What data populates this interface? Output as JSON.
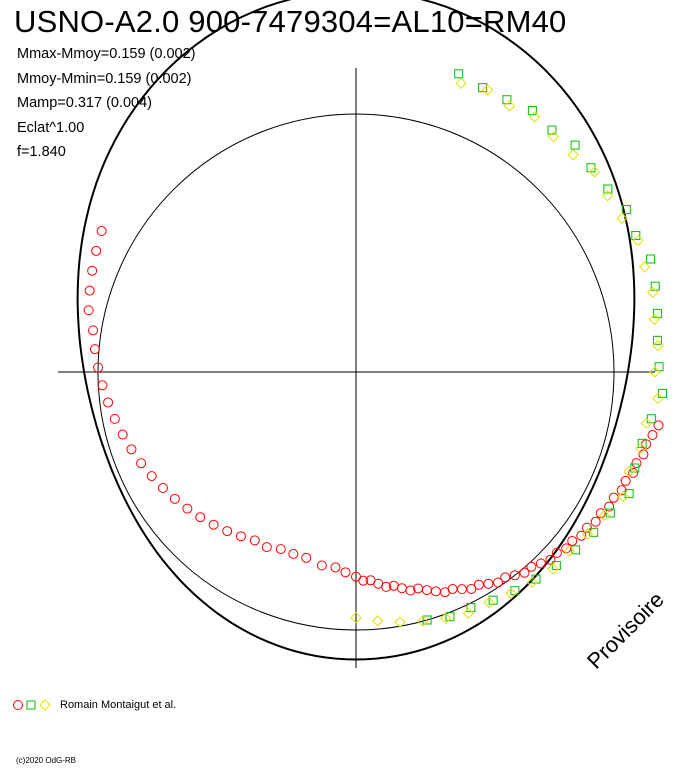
{
  "header": {
    "title": "USNO-A2.0 900-7479304=AL10=RM40"
  },
  "stats": [
    "Mmax-Mmoy=0.159 (0.002)",
    "Mmoy-Mmin=0.159 (0.002)",
    "Mamp=0.317 (0.004)",
    "Eclat^1.00",
    "f=1.840"
  ],
  "watermark": "Provisoire",
  "legend": {
    "label": "Romain Montaigut et al.",
    "marker_colors": [
      "#ff0000",
      "#00c000",
      "#ffff00"
    ]
  },
  "footer": {
    "credit": "(c)2020 OdG-RB"
  },
  "chart_data": {
    "type": "scatter",
    "projection": "polar light curve (phase as angle, magnitude as radius)",
    "reference_circle_radius_mag": 0.0,
    "model": {
      "color": "#000000",
      "shape": "double-peaked",
      "amplitude_mag": 0.317
    },
    "series": [
      {
        "marker": "circle",
        "color": "#ff0000",
        "points": [
          [
            100,
            0.12
          ],
          [
            102,
            0.11
          ],
          [
            104,
            0.1
          ],
          [
            106,
            0.1
          ],
          [
            108,
            0.09
          ],
          [
            110,
            0.09
          ],
          [
            112,
            0.08
          ],
          [
            114,
            0.08
          ],
          [
            116,
            0.07
          ],
          [
            118,
            0.07
          ],
          [
            120,
            0.06
          ],
          [
            122,
            0.06
          ],
          [
            124,
            0.05
          ],
          [
            126,
            0.05
          ],
          [
            128,
            0.04
          ],
          [
            130,
            0.04
          ],
          [
            132,
            0.03
          ],
          [
            134,
            0.03
          ],
          [
            136,
            0.02
          ],
          [
            138,
            0.01
          ],
          [
            140,
            0.01
          ],
          [
            142,
            0.0
          ],
          [
            144,
            -0.01
          ],
          [
            146,
            -0.01
          ],
          [
            148,
            -0.02
          ],
          [
            150,
            -0.03
          ],
          [
            152,
            -0.03
          ],
          [
            154,
            -0.04
          ],
          [
            156,
            -0.05
          ],
          [
            158,
            -0.05
          ],
          [
            160,
            -0.06
          ],
          [
            162,
            -0.07
          ],
          [
            164,
            -0.08
          ],
          [
            166,
            -0.08
          ],
          [
            168,
            -0.09
          ],
          [
            170,
            -0.1
          ],
          [
            172,
            -0.1
          ],
          [
            174,
            -0.11
          ],
          [
            176,
            -0.12
          ],
          [
            178,
            -0.12
          ],
          [
            180,
            -0.13
          ],
          [
            183,
            -0.14
          ],
          [
            186,
            -0.15
          ],
          [
            190,
            -0.15
          ],
          [
            195,
            -0.16
          ],
          [
            199,
            -0.16
          ],
          [
            203,
            -0.16
          ],
          [
            207,
            -0.15
          ],
          [
            211,
            -0.15
          ],
          [
            215,
            -0.14
          ],
          [
            219,
            -0.13
          ],
          [
            223,
            -0.12
          ],
          [
            227,
            -0.11
          ],
          [
            231,
            -0.1
          ],
          [
            235,
            -0.09
          ],
          [
            239,
            -0.08
          ],
          [
            243,
            -0.07
          ],
          [
            247,
            -0.06
          ],
          [
            251,
            -0.05
          ],
          [
            255,
            -0.04
          ],
          [
            259,
            -0.03
          ],
          [
            263,
            -0.02
          ],
          [
            267,
            -0.01
          ],
          [
            271,
            0.0
          ],
          [
            275,
            0.01
          ],
          [
            279,
            0.02
          ],
          [
            283,
            0.04
          ],
          [
            287,
            0.05
          ],
          [
            291,
            0.06
          ],
          [
            295,
            0.07
          ],
          [
            299,
            0.08
          ]
        ]
      },
      {
        "marker": "square",
        "color": "#00c000",
        "points": [
          [
            19,
            0.14
          ],
          [
            24,
            0.13
          ],
          [
            29,
            0.13
          ],
          [
            34,
            0.14
          ],
          [
            39,
            0.13
          ],
          [
            44,
            0.14
          ],
          [
            49,
            0.13
          ],
          [
            54,
            0.13
          ],
          [
            59,
            0.14
          ],
          [
            64,
            0.13
          ],
          [
            69,
            0.14
          ],
          [
            74,
            0.13
          ],
          [
            79,
            0.12
          ],
          [
            84,
            0.11
          ],
          [
            89,
            0.11
          ],
          [
            94,
            0.12
          ],
          [
            99,
            0.1
          ],
          [
            104,
            0.09
          ],
          [
            109,
            0.09
          ],
          [
            114,
            0.1
          ],
          [
            119,
            0.08
          ],
          [
            124,
            0.07
          ],
          [
            129,
            0.06
          ],
          [
            134,
            0.05
          ],
          [
            139,
            0.04
          ],
          [
            144,
            0.03
          ],
          [
            149,
            0.02
          ],
          [
            154,
            0.01
          ],
          [
            159,
            0.01
          ],
          [
            164,
            0.0
          ]
        ]
      },
      {
        "marker": "diamond",
        "color": "#ffff00",
        "points": [
          [
            20,
            0.12
          ],
          [
            25,
            0.13
          ],
          [
            30,
            0.12
          ],
          [
            35,
            0.13
          ],
          [
            40,
            0.12
          ],
          [
            45,
            0.12
          ],
          [
            50,
            0.13
          ],
          [
            55,
            0.12
          ],
          [
            60,
            0.12
          ],
          [
            65,
            0.13
          ],
          [
            70,
            0.12
          ],
          [
            75,
            0.12
          ],
          [
            80,
            0.11
          ],
          [
            85,
            0.11
          ],
          [
            90,
            0.1
          ],
          [
            95,
            0.11
          ],
          [
            100,
            0.09
          ],
          [
            105,
            0.09
          ],
          [
            110,
            0.08
          ],
          [
            115,
            0.09
          ],
          [
            120,
            0.07
          ],
          [
            125,
            0.06
          ],
          [
            130,
            0.05
          ],
          [
            135,
            0.05
          ],
          [
            140,
            0.04
          ],
          [
            145,
            0.03
          ],
          [
            150,
            0.02
          ],
          [
            155,
            0.02
          ],
          [
            160,
            0.01
          ],
          [
            165,
            0.0
          ],
          [
            170,
            -0.01
          ],
          [
            175,
            -0.02
          ],
          [
            180,
            -0.03
          ]
        ]
      }
    ]
  }
}
